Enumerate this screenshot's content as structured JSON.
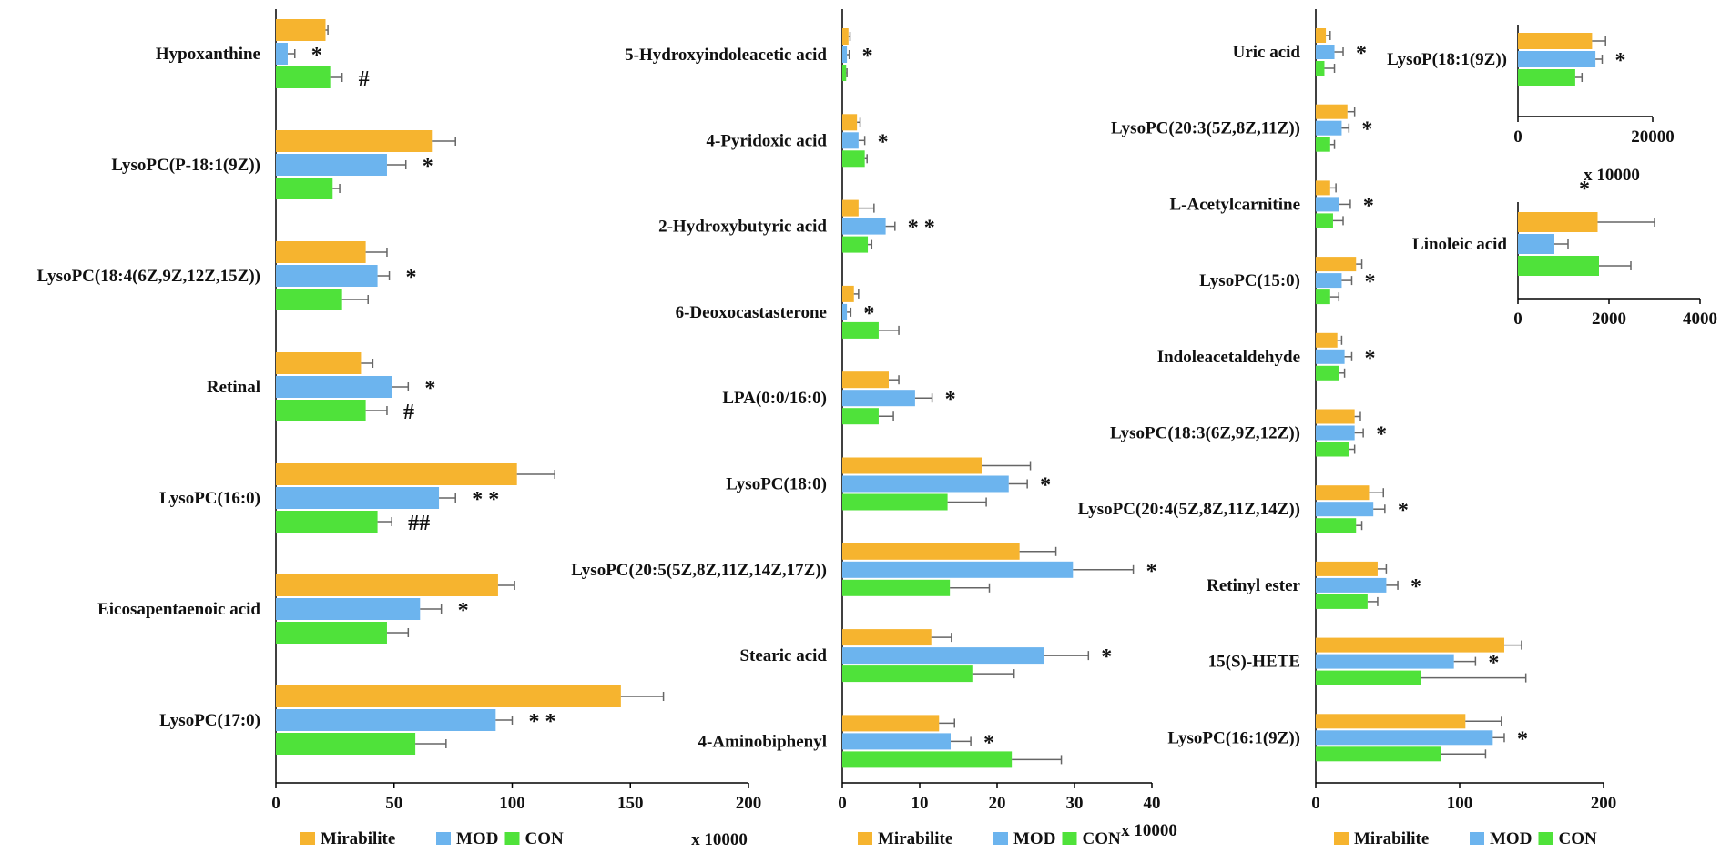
{
  "colors": {
    "Mirabilite": "#f6b42f",
    "MOD": "#6cb4ee",
    "CON": "#4fe23a",
    "error_bar": "#666666",
    "axis": "#000000"
  },
  "chart_data": [
    {
      "type": "bar",
      "orientation": "horizontal",
      "unit_label": "x 10000",
      "xlim": [
        0,
        200
      ],
      "ticks": [
        "0",
        "50",
        "100",
        "150",
        "200"
      ],
      "legend": [
        "Mirabilite",
        "MOD",
        "CON"
      ],
      "legend_position": "bottom",
      "categories": [
        "Hypoxanthine",
        "LysoPC(P-18:1(9Z))",
        "LysoPC(18:4(6Z,9Z,12Z,15Z))",
        "Retinal",
        "LysoPC(16:0)",
        "Eicosapentaenoic acid",
        "LysoPC(17:0)"
      ],
      "series": [
        {
          "name": "Mirabilite",
          "values": [
            21,
            66,
            38,
            36,
            102,
            94,
            146
          ],
          "errors": [
            1,
            10,
            9,
            5,
            16,
            7,
            18
          ]
        },
        {
          "name": "MOD",
          "values": [
            5,
            47,
            43,
            49,
            69,
            61,
            93
          ],
          "errors": [
            3,
            8,
            5,
            7,
            7,
            9,
            7
          ]
        },
        {
          "name": "CON",
          "values": [
            23,
            24,
            28,
            38,
            43,
            47,
            59
          ],
          "errors": [
            5,
            3,
            11,
            9,
            6,
            9,
            13
          ]
        }
      ],
      "annotations": {
        "MOD": [
          "*",
          "*",
          "*",
          "*",
          "* *",
          "*",
          "*     *"
        ],
        "CON": [
          "#",
          "",
          "",
          "#",
          "##",
          "",
          ""
        ]
      }
    },
    {
      "type": "bar",
      "orientation": "horizontal",
      "unit_label": "x 10000",
      "xlim": [
        0,
        40
      ],
      "ticks": [
        "0",
        "10",
        "20",
        "30",
        "40"
      ],
      "legend": [
        "Mirabilite",
        "MOD",
        "CON"
      ],
      "legend_position": "bottom",
      "categories": [
        "5-Hydroxyindoleacetic acid",
        "4-Pyridoxic acid",
        "2-Hydroxybutyric acid",
        "6-Deoxocastasterone",
        "LPA(0:0/16:0)",
        "LysoPC(18:0)",
        "LysoPC(20:5(5Z,8Z,11Z,14Z,17Z))",
        "Stearic acid",
        "4-Aminobiphenyl"
      ],
      "series": [
        {
          "name": "Mirabilite",
          "values": [
            0.8,
            1.9,
            2.1,
            1.5,
            6.0,
            18.0,
            22.9,
            11.5,
            12.5
          ],
          "errors": [
            0.2,
            0.4,
            2.0,
            0.6,
            1.3,
            6.3,
            4.7,
            2.6,
            2.0
          ]
        },
        {
          "name": "MOD",
          "values": [
            0.6,
            2.1,
            5.6,
            0.6,
            9.4,
            21.5,
            29.8,
            26.0,
            14.0
          ],
          "errors": [
            0.3,
            0.8,
            1.2,
            0.5,
            2.2,
            2.4,
            7.8,
            5.8,
            2.6
          ]
        },
        {
          "name": "CON",
          "values": [
            0.5,
            2.9,
            3.3,
            4.7,
            4.7,
            13.6,
            13.9,
            16.8,
            21.9
          ],
          "errors": [
            0.1,
            0.3,
            0.5,
            2.6,
            1.9,
            5.0,
            5.1,
            5.4,
            6.4
          ]
        }
      ],
      "annotations": {
        "MOD": [
          "*",
          "*",
          "*      *",
          "*",
          "*",
          "*",
          "*",
          "*",
          "*"
        ]
      }
    },
    {
      "type": "bar",
      "orientation": "horizontal",
      "xlim": [
        0,
        200
      ],
      "ticks": [
        "0",
        "100",
        "200"
      ],
      "legend": [
        "Mirabilite",
        "MOD",
        "CON"
      ],
      "legend_position": "bottom",
      "categories": [
        "Uric acid",
        "LysoPC(20:3(5Z,8Z,11Z))",
        "L-Acetylcarnitine",
        "LysoPC(15:0)",
        "Indoleacetaldehyde",
        "LysoPC(18:3(6Z,9Z,12Z))",
        "LysoPC(20:4(5Z,8Z,11Z,14Z))",
        "Retinyl ester",
        "15(S)-HETE",
        "LysoPC(16:1(9Z))"
      ],
      "series": [
        {
          "name": "Mirabilite",
          "values": [
            7,
            22,
            10,
            28,
            15,
            27,
            37,
            43,
            131,
            104
          ],
          "errors": [
            3,
            5,
            4,
            4,
            3,
            4,
            10,
            6,
            12,
            25
          ]
        },
        {
          "name": "MOD",
          "values": [
            13,
            18,
            16,
            18,
            20,
            27,
            40,
            49,
            96,
            123
          ],
          "errors": [
            6,
            5,
            8,
            7,
            5,
            6,
            8,
            8,
            15,
            8
          ]
        },
        {
          "name": "CON",
          "values": [
            6,
            10,
            12,
            10,
            16,
            23,
            28,
            36,
            73,
            87
          ],
          "errors": [
            7,
            3,
            7,
            6,
            4,
            4,
            4,
            7,
            73,
            31
          ]
        }
      ],
      "annotations": {
        "MOD": [
          "*",
          "*",
          "*",
          "*",
          "*",
          "*",
          "*",
          "*",
          "*",
          "*"
        ]
      }
    },
    {
      "type": "bar",
      "orientation": "horizontal",
      "inset": true,
      "unit_label": "x 10000",
      "xlim": [
        0,
        20000
      ],
      "ticks": [
        "0",
        "20000"
      ],
      "categories": [
        "LysoP(18:1(9Z))"
      ],
      "series": [
        {
          "name": "Mirabilite",
          "values": [
            11000
          ],
          "errors": [
            2000
          ]
        },
        {
          "name": "MOD",
          "values": [
            11500
          ],
          "errors": [
            1000
          ]
        },
        {
          "name": "CON",
          "values": [
            8500
          ],
          "errors": [
            1000
          ]
        }
      ],
      "annotations": {
        "MOD": [
          "*"
        ]
      }
    },
    {
      "type": "bar",
      "orientation": "horizontal",
      "inset": true,
      "xlim": [
        0,
        4000
      ],
      "ticks": [
        "0",
        "2000",
        "4000"
      ],
      "categories": [
        "Linoleic acid"
      ],
      "series": [
        {
          "name": "Mirabilite",
          "values": [
            1750
          ],
          "errors": [
            1250
          ]
        },
        {
          "name": "MOD",
          "values": [
            800
          ],
          "errors": [
            300
          ]
        },
        {
          "name": "CON",
          "values": [
            1780
          ],
          "errors": [
            700
          ]
        }
      ],
      "annotations": {
        "top": "*"
      }
    }
  ]
}
